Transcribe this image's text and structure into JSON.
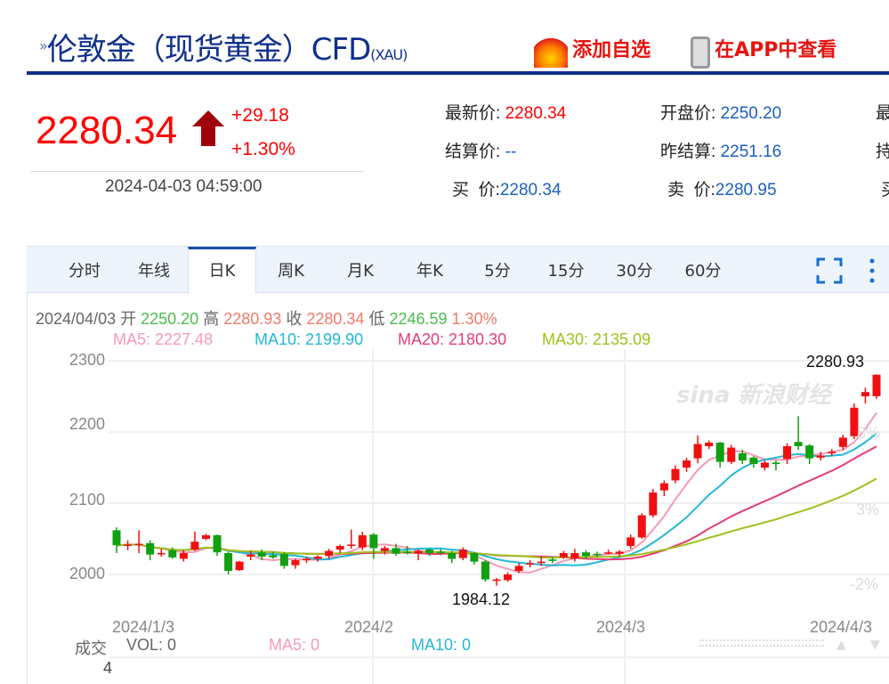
{
  "header": {
    "title": "伦敦金（现货黄金）CFD",
    "code": "(XAU)",
    "add_watch": "添加自选",
    "view_app": "在APP中查看"
  },
  "quote": {
    "price": "2280.34",
    "change": "+29.18",
    "change_pct": "+1.30%",
    "time": "2024-04-03 04:59:00",
    "fields": [
      {
        "label": "最新价:",
        "value": "2280.34",
        "color": "red"
      },
      {
        "label": "开盘价:",
        "value": "2250.20",
        "color": "blue"
      },
      {
        "label": "结算价:",
        "value": "--",
        "color": "blue"
      },
      {
        "label": "昨结算:",
        "value": "2251.16",
        "color": "blue"
      },
      {
        "label": "买  价:",
        "value": "2280.34",
        "color": "blue"
      },
      {
        "label": "卖  价:",
        "value": "2280.95",
        "color": "blue"
      }
    ],
    "cut_labels": [
      "最",
      "持",
      "买"
    ]
  },
  "tabs": [
    "分时",
    "年线",
    "日K",
    "周K",
    "月K",
    "年K",
    "5分",
    "15分",
    "30分",
    "60分"
  ],
  "active_tab": "日K",
  "info": {
    "date": "2024/04/03",
    "open_label": "开",
    "open": "2250.20",
    "high_label": "高",
    "high": "2280.93",
    "close_label": "收",
    "close": "2280.34",
    "low_label": "低",
    "low": "2246.59",
    "pct": "1.30%",
    "ma5": "MA5: 2227.48",
    "ma10": "MA10: 2199.90",
    "ma20": "MA20: 2180.30",
    "ma30": "MA30: 2135.09"
  },
  "volume": {
    "label": "成交",
    "vol": "VOL: 0",
    "ma5": "MA5: 0",
    "ma10": "MA10: 0",
    "axis_value": "4"
  },
  "watermark": "sina 新浪财经",
  "colors": {
    "up": "#f01010",
    "down": "#10a010",
    "ma5": "#f59ab8",
    "ma10": "#22b8d8",
    "ma20": "#e63e74",
    "ma30": "#9cc21d",
    "brand": "#0f2f8c"
  },
  "chart_data": {
    "type": "candlestick",
    "ylim": [
      1960,
      2300
    ],
    "y_ticks": [
      "2300",
      "2200",
      "2100",
      "2000"
    ],
    "x_ticks": [
      "2024/1/3",
      "2024/2",
      "2024/3",
      "2024/4/3"
    ],
    "pct_ticks": [
      "8%",
      "3%",
      "-2%"
    ],
    "max_label": "2280.93",
    "min_label": "1984.12",
    "ohlc": [
      [
        2062,
        2066,
        2030,
        2041
      ],
      [
        2041,
        2048,
        2034,
        2042
      ],
      [
        2042,
        2062,
        2030,
        2043
      ],
      [
        2044,
        2048,
        2020,
        2028
      ],
      [
        2029,
        2036,
        2025,
        2030
      ],
      [
        2034,
        2038,
        2022,
        2024
      ],
      [
        2022,
        2034,
        2018,
        2030
      ],
      [
        2035,
        2060,
        2033,
        2046
      ],
      [
        2050,
        2057,
        2048,
        2055
      ],
      [
        2055,
        2056,
        2026,
        2031
      ],
      [
        2030,
        2032,
        2000,
        2005
      ],
      [
        2006,
        2019,
        2005,
        2018
      ],
      [
        2025,
        2033,
        2020,
        2028
      ],
      [
        2031,
        2035,
        2020,
        2025
      ],
      [
        2027,
        2032,
        2022,
        2024
      ],
      [
        2029,
        2031,
        2008,
        2012
      ],
      [
        2013,
        2022,
        2008,
        2020
      ],
      [
        2020,
        2025,
        2016,
        2022
      ],
      [
        2022,
        2027,
        2018,
        2025
      ],
      [
        2026,
        2036,
        2022,
        2033
      ],
      [
        2035,
        2042,
        2030,
        2040
      ],
      [
        2040,
        2063,
        2036,
        2042
      ],
      [
        2038,
        2060,
        2034,
        2055
      ],
      [
        2056,
        2058,
        2022,
        2037
      ],
      [
        2033,
        2040,
        2028,
        2037
      ],
      [
        2037,
        2043,
        2026,
        2029
      ],
      [
        2032,
        2040,
        2028,
        2030
      ],
      [
        2030,
        2035,
        2020,
        2033
      ],
      [
        2035,
        2037,
        2026,
        2030
      ],
      [
        2032,
        2036,
        2027,
        2031
      ],
      [
        2030,
        2033,
        2016,
        2022
      ],
      [
        2023,
        2038,
        2020,
        2035
      ],
      [
        2030,
        2032,
        2014,
        2018
      ],
      [
        2018,
        2020,
        1990,
        1993
      ],
      [
        1991,
        1995,
        1984.12,
        1993
      ],
      [
        1992,
        2003,
        1990,
        2000
      ],
      [
        2005,
        2016,
        2002,
        2012
      ],
      [
        2014,
        2020,
        2010,
        2016
      ],
      [
        2016,
        2025,
        2012,
        2018
      ],
      [
        2021,
        2024,
        2016,
        2019
      ],
      [
        2024,
        2033,
        2022,
        2030
      ],
      [
        2022,
        2036,
        2018,
        2030
      ],
      [
        2031,
        2034,
        2022,
        2026
      ],
      [
        2029,
        2032,
        2024,
        2027
      ],
      [
        2030,
        2035,
        2028,
        2031
      ],
      [
        2029,
        2034,
        2025,
        2032
      ],
      [
        2040,
        2056,
        2036,
        2052
      ],
      [
        2052,
        2086,
        2050,
        2083
      ],
      [
        2083,
        2120,
        2080,
        2115
      ],
      [
        2118,
        2132,
        2110,
        2128
      ],
      [
        2132,
        2153,
        2128,
        2148
      ],
      [
        2150,
        2164,
        2144,
        2160
      ],
      [
        2163,
        2195,
        2156,
        2183
      ],
      [
        2180,
        2188,
        2176,
        2185
      ],
      [
        2185,
        2186,
        2150,
        2158
      ],
      [
        2158,
        2182,
        2155,
        2178
      ],
      [
        2170,
        2175,
        2155,
        2160
      ],
      [
        2164,
        2166,
        2150,
        2155
      ],
      [
        2150,
        2160,
        2146,
        2157
      ],
      [
        2157,
        2160,
        2146,
        2155
      ],
      [
        2162,
        2184,
        2155,
        2180
      ],
      [
        2186,
        2222,
        2175,
        2180
      ],
      [
        2181,
        2183,
        2155,
        2163
      ],
      [
        2164,
        2172,
        2160,
        2167
      ],
      [
        2170,
        2176,
        2166,
        2172
      ],
      [
        2179,
        2196,
        2175,
        2192
      ],
      [
        2194,
        2240,
        2190,
        2234
      ],
      [
        2250,
        2262,
        2240,
        2256
      ],
      [
        2250.2,
        2280.93,
        2246.59,
        2280.34
      ]
    ]
  }
}
